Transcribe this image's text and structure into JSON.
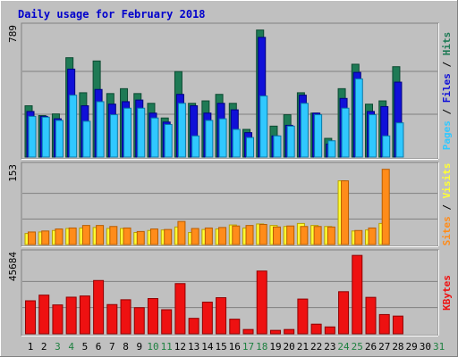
{
  "title": "Daily usage for February 2018",
  "colors": {
    "background": "#c0c0c0",
    "title": "#0000cc",
    "hits": "#1e7a55",
    "files": "#1010d8",
    "pages": "#30c8ff",
    "visits": "#ffff33",
    "sites": "#ff8c1a",
    "kbytes": "#ee1111",
    "weekend_label": "#1e8040",
    "weekday_label": "#000000"
  },
  "panels": {
    "top": {
      "max_label": "789",
      "legend": [
        "Pages",
        "Files",
        "Hits"
      ]
    },
    "middle": {
      "max_label": "153",
      "legend": [
        "Sites",
        "Visits"
      ]
    },
    "bottom": {
      "max_label": "45684",
      "legend": [
        "KBytes"
      ]
    }
  },
  "chart_data": {
    "type": "bar",
    "title": "Daily usage for February 2018",
    "categories": [
      "1",
      "2",
      "3",
      "4",
      "5",
      "6",
      "7",
      "8",
      "9",
      "10",
      "11",
      "12",
      "13",
      "14",
      "15",
      "16",
      "17",
      "18",
      "19",
      "20",
      "21",
      "22",
      "23",
      "24",
      "25",
      "26",
      "27",
      "28",
      "29",
      "30",
      "31"
    ],
    "weekend_days": [
      "3",
      "4",
      "10",
      "11",
      "17",
      "18",
      "24",
      "25",
      "31"
    ],
    "panels": [
      {
        "name": "top",
        "ylim": [
          0,
          789
        ],
        "series": [
          {
            "name": "Hits",
            "values": [
              315,
              255,
              265,
              610,
              395,
              590,
              390,
              420,
              390,
              330,
              240,
              525,
              330,
              345,
              385,
              330,
              170,
              780,
              190,
              260,
              395,
              270,
              115,
              420,
              570,
              325,
              345,
              555,
              0,
              0,
              0
            ]
          },
          {
            "name": "Files",
            "values": [
              280,
              250,
              235,
              540,
              315,
              415,
              325,
              340,
              350,
              270,
              215,
              385,
              315,
              270,
              330,
              290,
              150,
              735,
              130,
              195,
              380,
              270,
              80,
              360,
              520,
              280,
              310,
              460,
              0,
              0,
              0
            ]
          },
          {
            "name": "Pages",
            "values": [
              250,
              245,
              225,
              380,
              220,
              340,
              260,
              300,
              300,
              240,
              200,
              330,
              130,
              225,
              235,
              170,
              120,
              375,
              130,
              190,
              330,
              260,
              100,
              300,
              480,
              260,
              130,
              210,
              0,
              0,
              0
            ]
          }
        ]
      },
      {
        "name": "middle",
        "ylim": [
          0,
          153
        ],
        "series": [
          {
            "name": "Visits",
            "values": [
              22,
              25,
              28,
              32,
              33,
              34,
              32,
              32,
              24,
              28,
              29,
              35,
              24,
              30,
              31,
              39,
              33,
              41,
              38,
              36,
              42,
              38,
              36,
              127,
              27,
              29,
              42,
              0,
              0,
              0,
              0
            ]
          },
          {
            "name": "Sites",
            "values": [
              25,
              27,
              31,
              33,
              38,
              38,
              36,
              33,
              26,
              31,
              30,
              46,
              32,
              33,
              34,
              37,
              38,
              40,
              35,
              37,
              36,
              36,
              35,
              127,
              28,
              33,
              150,
              0,
              0,
              0,
              0
            ]
          }
        ]
      },
      {
        "name": "bottom",
        "ylim": [
          0,
          45684
        ],
        "series": [
          {
            "name": "KBytes",
            "values": [
              19200,
              22500,
              16800,
              21300,
              22000,
              31000,
              17000,
              19800,
              15200,
              20500,
              14000,
              29200,
              9000,
              18400,
              21000,
              8500,
              2500,
              36500,
              2000,
              2500,
              20200,
              5600,
              4000,
              24500,
              45600,
              21200,
              11200,
              10300,
              0,
              0,
              0
            ]
          }
        ]
      }
    ]
  }
}
